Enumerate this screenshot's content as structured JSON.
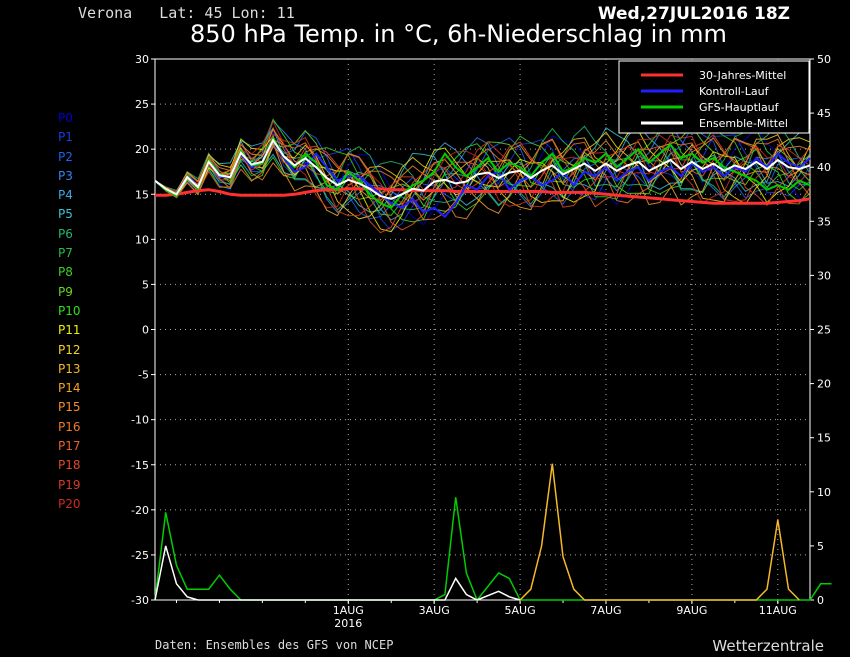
{
  "header": {
    "location": "Verona   Lat: 45 Lon: 11",
    "date": "Wed,27JUL2016 18Z",
    "title": "850 hPa Temp. in °C, 6h-Niederschlag in mm"
  },
  "footer": {
    "credit": "Daten: Ensembles des GFS von NCEP",
    "brand": "Wetterzentrale"
  },
  "members": [
    {
      "label": "P0",
      "color": "#0000cc"
    },
    {
      "label": "P1",
      "color": "#1a3ce0"
    },
    {
      "label": "P2",
      "color": "#1e62ee"
    },
    {
      "label": "P3",
      "color": "#2f86f0"
    },
    {
      "label": "P4",
      "color": "#3ca8e8"
    },
    {
      "label": "P5",
      "color": "#3cc0d0"
    },
    {
      "label": "P6",
      "color": "#22b870"
    },
    {
      "label": "P7",
      "color": "#22c04a"
    },
    {
      "label": "P8",
      "color": "#3fce2a"
    },
    {
      "label": "P9",
      "color": "#6ad61e"
    },
    {
      "label": "P10",
      "color": "#2ee01e"
    },
    {
      "label": "P11",
      "color": "#f0f000"
    },
    {
      "label": "P12",
      "color": "#f5d21e"
    },
    {
      "label": "P13",
      "color": "#f5b828"
    },
    {
      "label": "P14",
      "color": "#f5a028"
    },
    {
      "label": "P15",
      "color": "#f58c28"
    },
    {
      "label": "P16",
      "color": "#f07828"
    },
    {
      "label": "P17",
      "color": "#e86028"
    },
    {
      "label": "P18",
      "color": "#e04a28"
    },
    {
      "label": "P19",
      "color": "#d63a28"
    },
    {
      "label": "P20",
      "color": "#cc2a20"
    }
  ],
  "chart_data": {
    "type": "line",
    "x_unit": "6h steps from 27JUL2016 18Z",
    "x_ticks": [
      {
        "at": 18,
        "label": "1AUG",
        "sub": "2016"
      },
      {
        "at": 26,
        "label": "3AUG"
      },
      {
        "at": 34,
        "label": "5AUG"
      },
      {
        "at": 42,
        "label": "7AUG"
      },
      {
        "at": 50,
        "label": "9AUG"
      },
      {
        "at": 58,
        "label": "11AUG"
      }
    ],
    "y_left_ticks": [
      30,
      25,
      20,
      15,
      10,
      5,
      0,
      -5,
      -10,
      -15,
      -20,
      -25,
      -30
    ],
    "y_right_ticks": [
      50,
      45,
      40,
      35,
      30,
      25,
      20,
      15,
      10,
      5,
      0
    ],
    "ylim_left": [
      -30,
      30
    ],
    "ylim_right": [
      0,
      50
    ],
    "grid": true,
    "legend_position": "top-right",
    "legend": [
      {
        "name": "30-Jahres-Mittel",
        "color": "#ff3030"
      },
      {
        "name": "Kontroll-Lauf",
        "color": "#2020ff"
      },
      {
        "name": "GFS-Hauptlauf",
        "color": "#00cc00"
      },
      {
        "name": "Ensemble-Mittel",
        "color": "#ffffff"
      }
    ],
    "series": [
      {
        "name": "30-Jahres-Mittel",
        "color": "#ff3030",
        "values": [
          14.9,
          14.9,
          15.0,
          15.2,
          15.4,
          15.5,
          15.3,
          15.0,
          14.9,
          14.9,
          14.9,
          14.9,
          14.9,
          15.0,
          15.2,
          15.4,
          15.5,
          15.5,
          15.6,
          15.6,
          15.6,
          15.6,
          15.5,
          15.5,
          15.4,
          15.4,
          15.4,
          15.4,
          15.3,
          15.3,
          15.3,
          15.3,
          15.3,
          15.3,
          15.3,
          15.3,
          15.3,
          15.2,
          15.2,
          15.2,
          15.2,
          15.1,
          15.0,
          14.9,
          14.8,
          14.7,
          14.6,
          14.5,
          14.4,
          14.3,
          14.2,
          14.1,
          14.0,
          14.0,
          14.0,
          14.0,
          14.0,
          14.0,
          14.1,
          14.2,
          14.3,
          14.5
        ]
      },
      {
        "name": "Kontroll-Lauf",
        "color": "#2020ff",
        "values": [
          16.5,
          15.5,
          15.0,
          17.0,
          15.8,
          18.6,
          17.0,
          16.8,
          19.5,
          18.0,
          18.5,
          21.0,
          19.0,
          17.5,
          18.0,
          19.5,
          18.0,
          16.5,
          17.0,
          17.0,
          16.0,
          15.0,
          14.0,
          13.5,
          14.5,
          13.0,
          13.5,
          12.5,
          14.0,
          16.0,
          15.5,
          17.0,
          17.5,
          15.5,
          16.5,
          17.0,
          16.0,
          16.5,
          17.5,
          16.0,
          17.5,
          17.0,
          18.0,
          16.5,
          17.5,
          18.0,
          16.5,
          17.5,
          18.0,
          17.0,
          18.5,
          17.5,
          18.0,
          17.0,
          18.0,
          17.5,
          19.0,
          18.0,
          19.5,
          18.5,
          18.0,
          19.0
        ]
      },
      {
        "name": "GFS-Hauptlauf",
        "color": "#00cc00",
        "values": [
          16.5,
          15.5,
          14.8,
          17.0,
          15.6,
          18.8,
          17.2,
          16.8,
          19.8,
          18.2,
          18.4,
          21.2,
          19.2,
          18.0,
          19.5,
          18.5,
          16.0,
          15.5,
          17.5,
          16.5,
          15.0,
          14.0,
          13.5,
          15.0,
          16.0,
          16.5,
          17.5,
          19.5,
          18.0,
          17.0,
          18.0,
          19.0,
          17.5,
          18.5,
          18.0,
          17.0,
          18.5,
          19.5,
          17.5,
          18.0,
          19.0,
          18.5,
          19.5,
          18.0,
          19.0,
          20.0,
          18.5,
          19.5,
          20.5,
          19.0,
          19.5,
          18.5,
          19.0,
          18.0,
          17.5,
          17.0,
          16.5,
          15.5,
          16.0,
          15.5,
          16.5,
          16.0
        ]
      },
      {
        "name": "Ensemble-Mittel",
        "color": "#ffffff",
        "values": [
          16.5,
          15.6,
          15.0,
          16.9,
          15.8,
          18.6,
          17.1,
          16.9,
          19.6,
          18.3,
          18.6,
          21.0,
          19.2,
          18.2,
          19.0,
          18.0,
          16.8,
          16.0,
          16.6,
          16.2,
          15.6,
          14.8,
          14.5,
          15.0,
          15.6,
          15.4,
          16.4,
          16.6,
          16.2,
          16.4,
          17.2,
          17.4,
          16.8,
          17.4,
          17.6,
          16.8,
          17.6,
          18.2,
          17.2,
          17.8,
          18.4,
          17.6,
          18.4,
          17.6,
          18.2,
          18.6,
          17.6,
          18.2,
          18.8,
          17.8,
          18.6,
          17.8,
          18.4,
          17.6,
          18.2,
          17.8,
          18.6,
          17.8,
          18.8,
          18.0,
          17.8,
          18.2
        ]
      }
    ],
    "precipitation": {
      "axis": "right",
      "unit": "mm",
      "series": [
        {
          "name": "GFS-Hauptlauf",
          "color": "#00cc00",
          "points": [
            [
              0,
              0
            ],
            [
              1,
              8.1
            ],
            [
              2,
              3.2
            ],
            [
              3,
              1
            ],
            [
              4,
              1
            ],
            [
              5,
              1
            ],
            [
              6,
              2.3
            ],
            [
              7,
              1
            ],
            [
              8,
              0
            ],
            [
              26,
              0
            ],
            [
              27,
              0.5
            ],
            [
              28,
              9.5
            ],
            [
              29,
              2.5
            ],
            [
              30,
              0
            ],
            [
              32,
              2.5
            ],
            [
              33,
              2
            ],
            [
              34,
              0
            ],
            [
              61,
              0
            ],
            [
              62,
              1.5
            ],
            [
              63,
              1.5
            ]
          ]
        },
        {
          "name": "P13",
          "color": "#f5b828",
          "points": [
            [
              34,
              0
            ],
            [
              35,
              1
            ],
            [
              36,
              5
            ],
            [
              37,
              12.6
            ],
            [
              38,
              4
            ],
            [
              39,
              1
            ],
            [
              40,
              0
            ],
            [
              56,
              0
            ],
            [
              57,
              1
            ],
            [
              58,
              7.4
            ],
            [
              59,
              1
            ],
            [
              60,
              0
            ]
          ]
        },
        {
          "name": "Ensemble-Mittel",
          "color": "#ffffff",
          "points": [
            [
              0,
              0
            ],
            [
              1,
              5
            ],
            [
              2,
              1.5
            ],
            [
              3,
              0.3
            ],
            [
              4,
              0
            ],
            [
              27,
              0
            ],
            [
              28,
              2
            ],
            [
              29,
              0.5
            ],
            [
              30,
              0
            ],
            [
              32,
              0.8
            ],
            [
              33,
              0.3
            ],
            [
              34,
              0
            ]
          ]
        }
      ]
    }
  }
}
